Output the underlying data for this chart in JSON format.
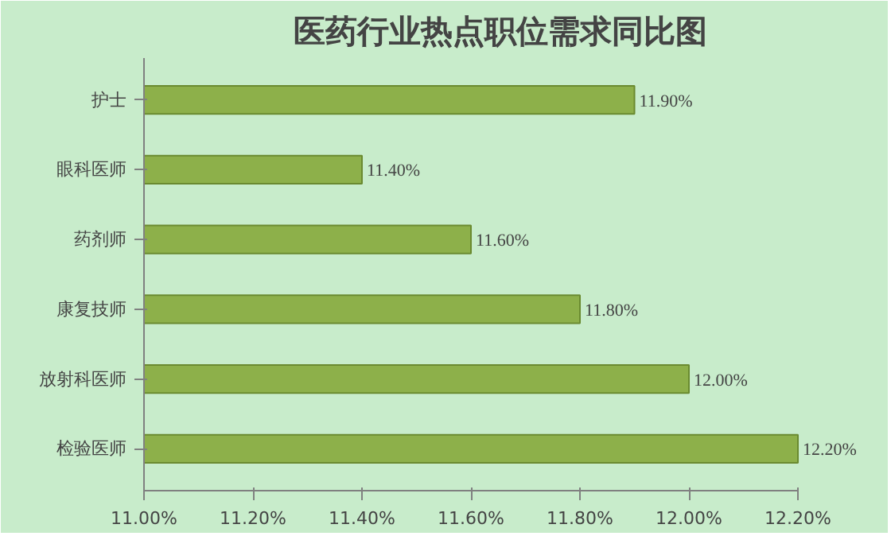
{
  "chart_data": {
    "type": "bar",
    "orientation": "horizontal",
    "title": "医药行业热点职位需求同比图",
    "categories": [
      "护士",
      "眼科医师",
      "药剂师",
      "康复技师",
      "放射科医师",
      "检验医师"
    ],
    "values": [
      11.9,
      11.4,
      11.6,
      11.8,
      12.0,
      12.2
    ],
    "value_labels": [
      "11.90%",
      "11.40%",
      "11.60%",
      "11.80%",
      "12.00%",
      "12.20%"
    ],
    "color": "#8db04a",
    "xlim": [
      11.0,
      12.2
    ],
    "xticks": [
      {
        "value": 11.0,
        "label": "11.00%"
      },
      {
        "value": 11.2,
        "label": "11.20%"
      },
      {
        "value": 11.4,
        "label": "11.40%"
      },
      {
        "value": 11.6,
        "label": "11.60%"
      },
      {
        "value": 11.8,
        "label": "11.80%"
      },
      {
        "value": 12.0,
        "label": "12.00%"
      },
      {
        "value": 12.2,
        "label": "12.20%"
      }
    ],
    "grid": false
  }
}
